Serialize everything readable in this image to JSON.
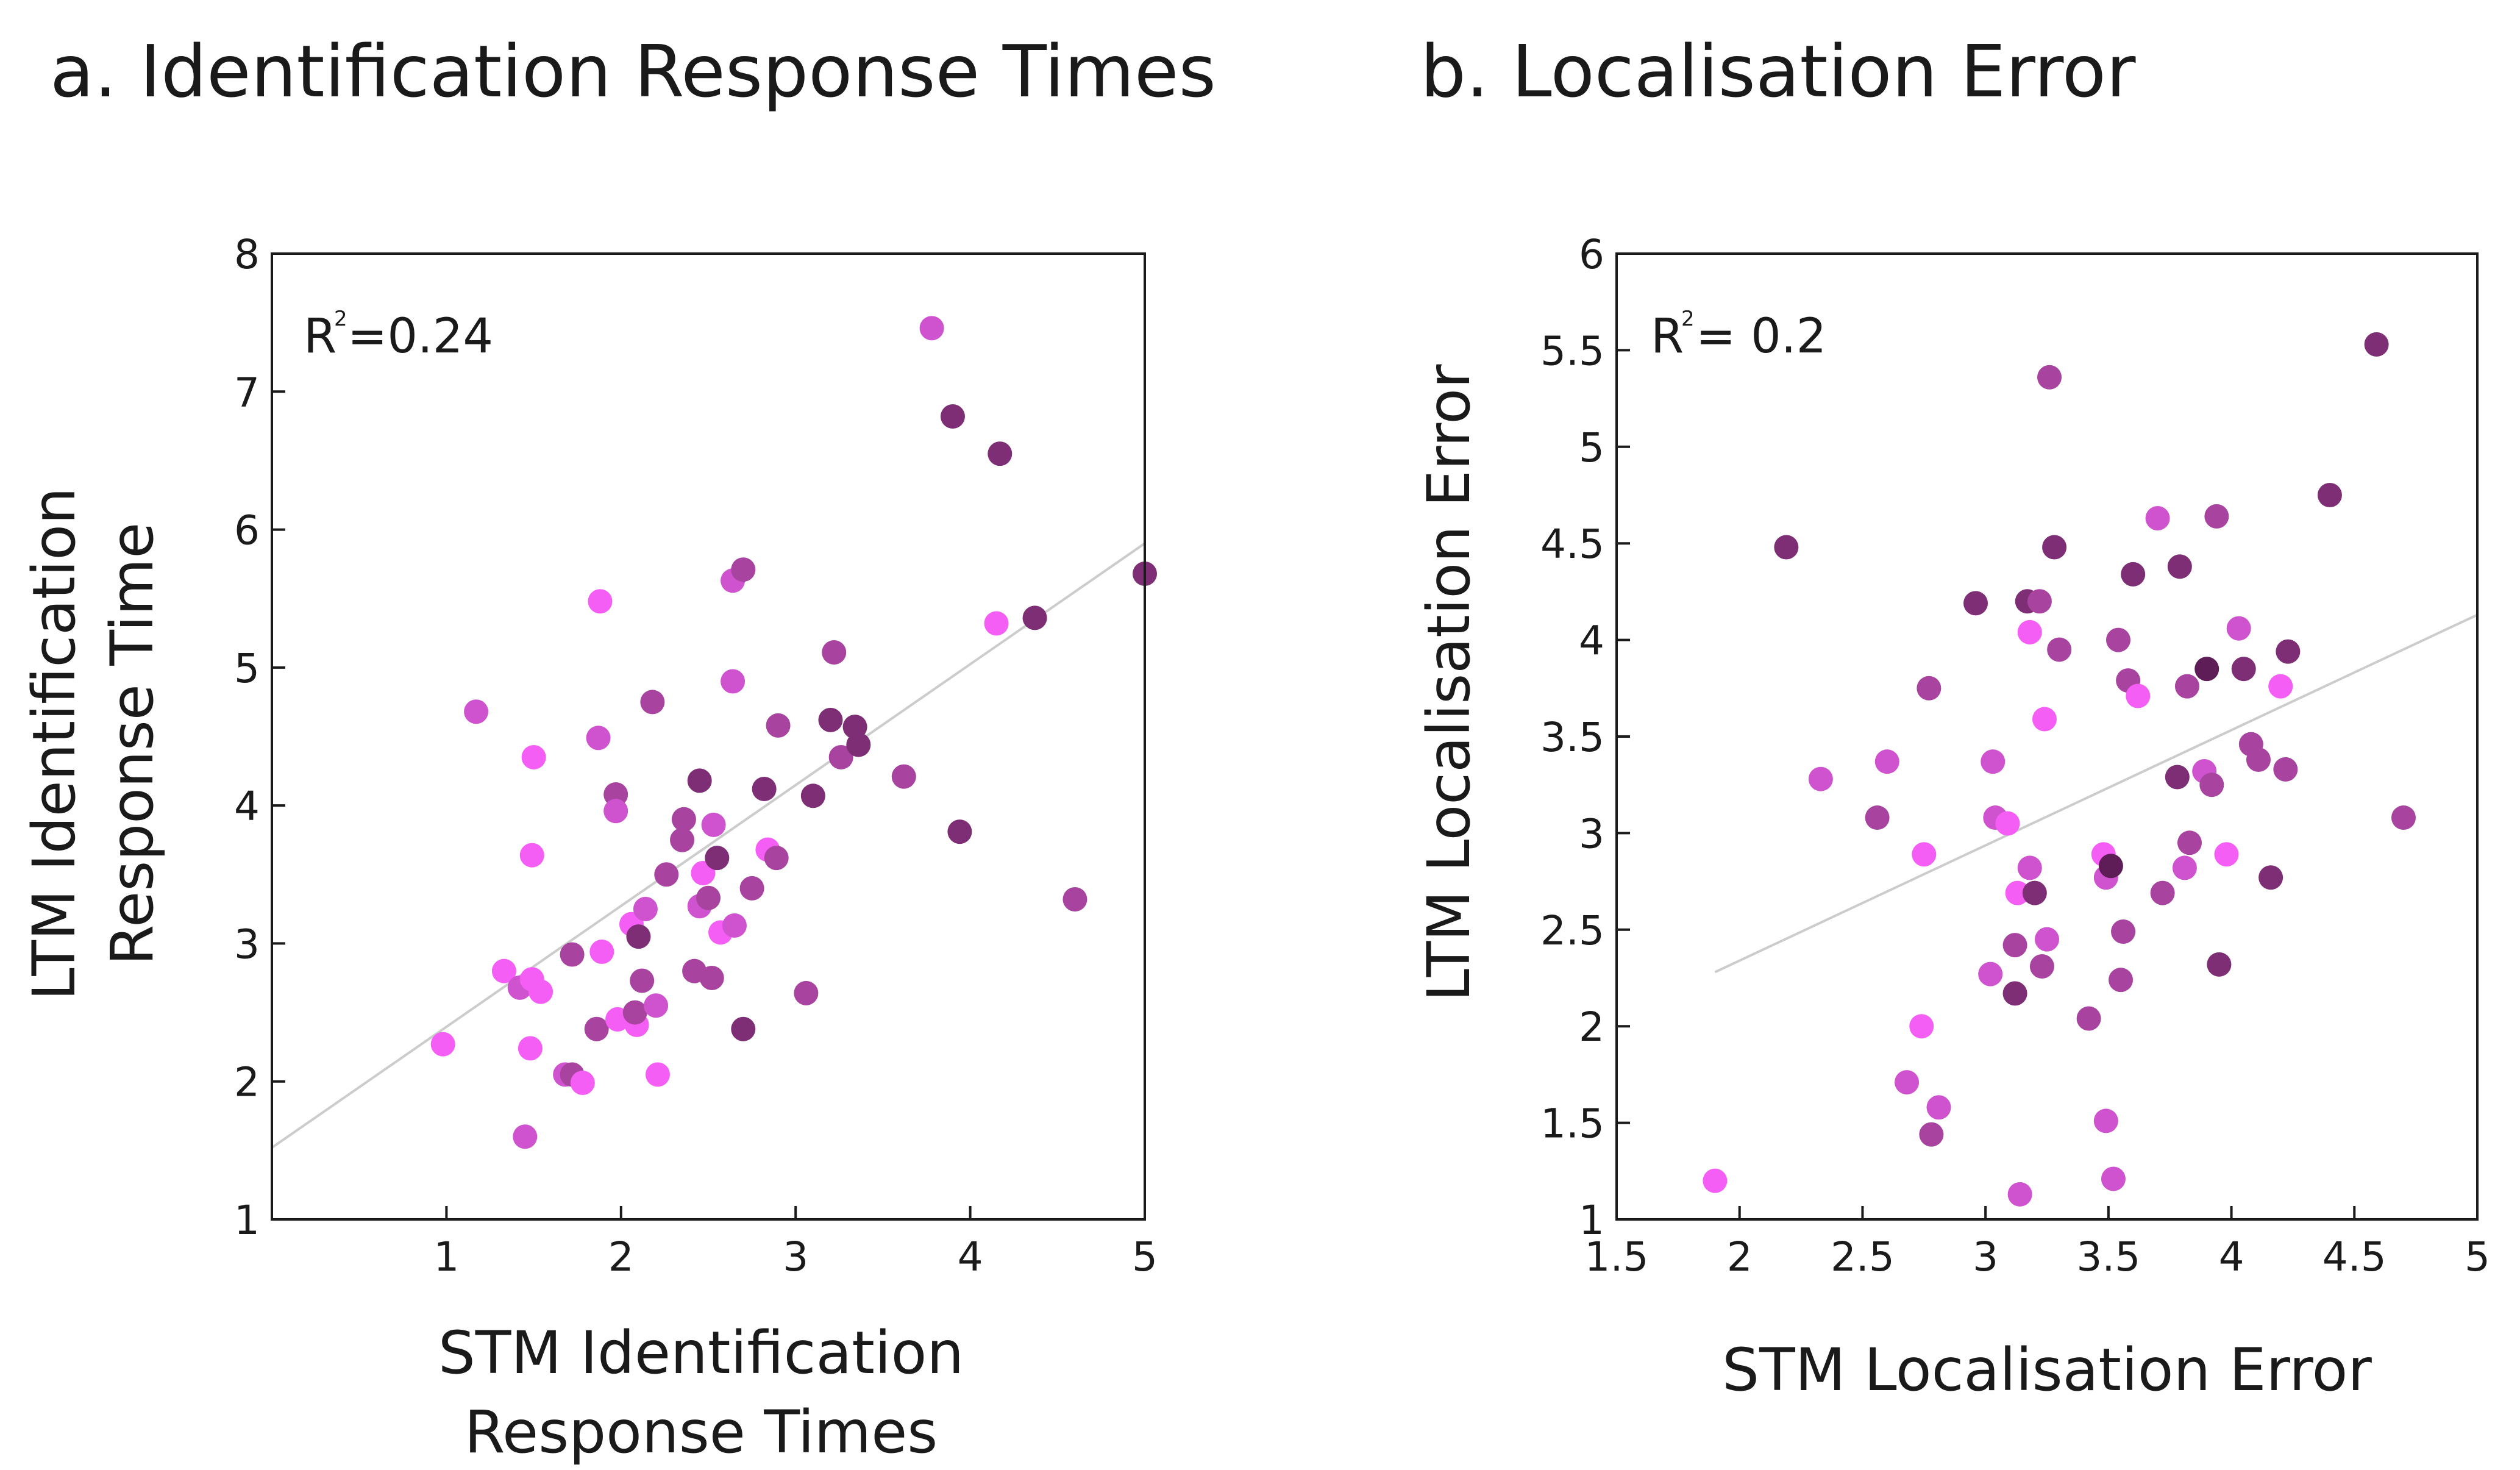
{
  "chart_data": [
    {
      "type": "scatter",
      "title": "a. Identification Response Times",
      "xlabel_lines": [
        "STM Identification",
        "Response Times"
      ],
      "ylabel_lines": [
        "LTM Identification",
        "Response Time"
      ],
      "xlim": [
        0,
        5
      ],
      "ylim": [
        1,
        8
      ],
      "xticks": [
        1,
        2,
        3,
        4,
        5
      ],
      "yticks": [
        1,
        2,
        3,
        4,
        5,
        6,
        7,
        8
      ],
      "annotation": {
        "base": "R",
        "sup": "2",
        "value": "=0.24"
      },
      "fit_line": {
        "x": [
          0,
          5
        ],
        "y": [
          1.52,
          5.9
        ]
      },
      "colors": {
        "c1": "#f55ef5",
        "c2": "#cf52cf",
        "c3": "#a8439f",
        "c4": "#7e2e74",
        "c5": "#5f1d58"
      },
      "points": [
        {
          "x": 0.98,
          "y": 2.27,
          "c": "c1"
        },
        {
          "x": 1.17,
          "y": 4.68,
          "c": "c2"
        },
        {
          "x": 1.33,
          "y": 2.8,
          "c": "c1"
        },
        {
          "x": 1.42,
          "y": 2.68,
          "c": "c2"
        },
        {
          "x": 1.45,
          "y": 1.6,
          "c": "c2"
        },
        {
          "x": 1.48,
          "y": 2.24,
          "c": "c1"
        },
        {
          "x": 1.49,
          "y": 2.74,
          "c": "c1"
        },
        {
          "x": 1.5,
          "y": 4.35,
          "c": "c1"
        },
        {
          "x": 1.49,
          "y": 3.64,
          "c": "c1"
        },
        {
          "x": 1.54,
          "y": 2.65,
          "c": "c1"
        },
        {
          "x": 1.68,
          "y": 2.05,
          "c": "c2"
        },
        {
          "x": 1.72,
          "y": 2.05,
          "c": "c3"
        },
        {
          "x": 1.72,
          "y": 2.92,
          "c": "c3"
        },
        {
          "x": 1.78,
          "y": 1.99,
          "c": "c1"
        },
        {
          "x": 1.86,
          "y": 2.38,
          "c": "c3"
        },
        {
          "x": 1.87,
          "y": 4.49,
          "c": "c2"
        },
        {
          "x": 1.88,
          "y": 5.48,
          "c": "c1"
        },
        {
          "x": 1.89,
          "y": 2.94,
          "c": "c1"
        },
        {
          "x": 1.97,
          "y": 4.08,
          "c": "c3"
        },
        {
          "x": 1.97,
          "y": 3.96,
          "c": "c2"
        },
        {
          "x": 1.98,
          "y": 2.45,
          "c": "c1"
        },
        {
          "x": 2.06,
          "y": 3.14,
          "c": "c1"
        },
        {
          "x": 2.09,
          "y": 2.41,
          "c": "c1"
        },
        {
          "x": 2.1,
          "y": 3.05,
          "c": "c4"
        },
        {
          "x": 2.08,
          "y": 2.5,
          "c": "c3"
        },
        {
          "x": 2.12,
          "y": 2.73,
          "c": "c3"
        },
        {
          "x": 2.14,
          "y": 3.25,
          "c": "c2"
        },
        {
          "x": 2.18,
          "y": 4.75,
          "c": "c3"
        },
        {
          "x": 2.2,
          "y": 2.55,
          "c": "c2"
        },
        {
          "x": 2.21,
          "y": 2.05,
          "c": "c1"
        },
        {
          "x": 2.26,
          "y": 3.5,
          "c": "c3"
        },
        {
          "x": 2.35,
          "y": 3.75,
          "c": "c3"
        },
        {
          "x": 2.36,
          "y": 3.9,
          "c": "c3"
        },
        {
          "x": 2.42,
          "y": 2.8,
          "c": "c3"
        },
        {
          "x": 2.45,
          "y": 4.18,
          "c": "c4"
        },
        {
          "x": 2.45,
          "y": 3.27,
          "c": "c2"
        },
        {
          "x": 2.47,
          "y": 3.51,
          "c": "c1"
        },
        {
          "x": 2.5,
          "y": 3.33,
          "c": "c3"
        },
        {
          "x": 2.52,
          "y": 2.75,
          "c": "c3"
        },
        {
          "x": 2.53,
          "y": 3.86,
          "c": "c2"
        },
        {
          "x": 2.55,
          "y": 3.62,
          "c": "c4"
        },
        {
          "x": 2.57,
          "y": 3.08,
          "c": "c1"
        },
        {
          "x": 2.64,
          "y": 4.9,
          "c": "c2"
        },
        {
          "x": 2.64,
          "y": 5.63,
          "c": "c2"
        },
        {
          "x": 2.65,
          "y": 3.13,
          "c": "c2"
        },
        {
          "x": 2.7,
          "y": 5.71,
          "c": "c3"
        },
        {
          "x": 2.7,
          "y": 2.38,
          "c": "c4"
        },
        {
          "x": 2.75,
          "y": 3.4,
          "c": "c3"
        },
        {
          "x": 2.82,
          "y": 4.12,
          "c": "c4"
        },
        {
          "x": 2.84,
          "y": 3.68,
          "c": "c1"
        },
        {
          "x": 2.89,
          "y": 3.62,
          "c": "c3"
        },
        {
          "x": 2.9,
          "y": 4.58,
          "c": "c3"
        },
        {
          "x": 3.06,
          "y": 2.64,
          "c": "c3"
        },
        {
          "x": 3.1,
          "y": 4.07,
          "c": "c4"
        },
        {
          "x": 3.2,
          "y": 4.62,
          "c": "c4"
        },
        {
          "x": 3.22,
          "y": 5.11,
          "c": "c3"
        },
        {
          "x": 3.26,
          "y": 4.35,
          "c": "c3"
        },
        {
          "x": 3.34,
          "y": 4.57,
          "c": "c4"
        },
        {
          "x": 3.36,
          "y": 4.44,
          "c": "c4"
        },
        {
          "x": 3.62,
          "y": 4.21,
          "c": "c3"
        },
        {
          "x": 3.78,
          "y": 7.46,
          "c": "c2"
        },
        {
          "x": 3.9,
          "y": 6.82,
          "c": "c4"
        },
        {
          "x": 3.94,
          "y": 3.81,
          "c": "c4"
        },
        {
          "x": 4.15,
          "y": 5.32,
          "c": "c1"
        },
        {
          "x": 4.17,
          "y": 6.55,
          "c": "c4"
        },
        {
          "x": 4.37,
          "y": 5.36,
          "c": "c4"
        },
        {
          "x": 4.6,
          "y": 3.32,
          "c": "c3"
        },
        {
          "x": 5.0,
          "y": 5.68,
          "c": "c4"
        }
      ]
    },
    {
      "type": "scatter",
      "title": "b. Localisation Error",
      "xlabel_lines": [
        "STM Localisation Error"
      ],
      "ylabel_lines": [
        "LTM Localisation Error"
      ],
      "xlim": [
        1.5,
        5
      ],
      "ylim": [
        1,
        6
      ],
      "xticks": [
        1.5,
        2,
        2.5,
        3,
        3.5,
        4,
        4.5,
        5
      ],
      "yticks": [
        1,
        1.5,
        2,
        2.5,
        3,
        3.5,
        4,
        4.5,
        5,
        5.5,
        6
      ],
      "annotation": {
        "base": "R",
        "sup": "2",
        "value": "= 0.2"
      },
      "fit_line": {
        "x": [
          1.9,
          5
        ],
        "y": [
          2.28,
          4.13
        ]
      },
      "colors": {
        "c1": "#f55ef5",
        "c2": "#cf52cf",
        "c3": "#a8439f",
        "c4": "#7e2e74",
        "c5": "#5f1d58"
      },
      "points": [
        {
          "x": 1.9,
          "y": 1.2,
          "c": "c1"
        },
        {
          "x": 2.19,
          "y": 4.48,
          "c": "c4"
        },
        {
          "x": 2.33,
          "y": 3.28,
          "c": "c2"
        },
        {
          "x": 2.56,
          "y": 3.08,
          "c": "c3"
        },
        {
          "x": 2.6,
          "y": 3.37,
          "c": "c2"
        },
        {
          "x": 2.68,
          "y": 1.71,
          "c": "c2"
        },
        {
          "x": 2.74,
          "y": 2.0,
          "c": "c1"
        },
        {
          "x": 2.75,
          "y": 2.89,
          "c": "c1"
        },
        {
          "x": 2.77,
          "y": 3.75,
          "c": "c3"
        },
        {
          "x": 2.78,
          "y": 1.44,
          "c": "c3"
        },
        {
          "x": 2.81,
          "y": 1.58,
          "c": "c2"
        },
        {
          "x": 2.96,
          "y": 4.19,
          "c": "c4"
        },
        {
          "x": 3.02,
          "y": 2.27,
          "c": "c2"
        },
        {
          "x": 3.03,
          "y": 3.37,
          "c": "c2"
        },
        {
          "x": 3.04,
          "y": 3.08,
          "c": "c2"
        },
        {
          "x": 3.09,
          "y": 3.05,
          "c": "c1"
        },
        {
          "x": 3.12,
          "y": 2.42,
          "c": "c3"
        },
        {
          "x": 3.12,
          "y": 2.17,
          "c": "c4"
        },
        {
          "x": 3.13,
          "y": 2.69,
          "c": "c1"
        },
        {
          "x": 3.14,
          "y": 1.13,
          "c": "c2"
        },
        {
          "x": 3.17,
          "y": 4.2,
          "c": "c4"
        },
        {
          "x": 3.18,
          "y": 4.04,
          "c": "c1"
        },
        {
          "x": 3.18,
          "y": 2.82,
          "c": "c2"
        },
        {
          "x": 3.2,
          "y": 2.69,
          "c": "c4"
        },
        {
          "x": 3.22,
          "y": 4.2,
          "c": "c3"
        },
        {
          "x": 3.23,
          "y": 2.31,
          "c": "c3"
        },
        {
          "x": 3.24,
          "y": 3.59,
          "c": "c1"
        },
        {
          "x": 3.25,
          "y": 2.45,
          "c": "c2"
        },
        {
          "x": 3.26,
          "y": 5.36,
          "c": "c3"
        },
        {
          "x": 3.28,
          "y": 4.48,
          "c": "c4"
        },
        {
          "x": 3.3,
          "y": 3.95,
          "c": "c3"
        },
        {
          "x": 3.42,
          "y": 2.04,
          "c": "c3"
        },
        {
          "x": 3.48,
          "y": 2.89,
          "c": "c1"
        },
        {
          "x": 3.49,
          "y": 2.77,
          "c": "c2"
        },
        {
          "x": 3.49,
          "y": 1.51,
          "c": "c2"
        },
        {
          "x": 3.51,
          "y": 2.83,
          "c": "c5"
        },
        {
          "x": 3.52,
          "y": 1.21,
          "c": "c2"
        },
        {
          "x": 3.54,
          "y": 4.0,
          "c": "c3"
        },
        {
          "x": 3.55,
          "y": 2.24,
          "c": "c3"
        },
        {
          "x": 3.56,
          "y": 2.49,
          "c": "c3"
        },
        {
          "x": 3.58,
          "y": 3.79,
          "c": "c3"
        },
        {
          "x": 3.6,
          "y": 4.34,
          "c": "c4"
        },
        {
          "x": 3.62,
          "y": 3.71,
          "c": "c1"
        },
        {
          "x": 3.7,
          "y": 4.63,
          "c": "c2"
        },
        {
          "x": 3.72,
          "y": 2.69,
          "c": "c3"
        },
        {
          "x": 3.78,
          "y": 3.29,
          "c": "c4"
        },
        {
          "x": 3.79,
          "y": 4.38,
          "c": "c4"
        },
        {
          "x": 3.81,
          "y": 2.82,
          "c": "c2"
        },
        {
          "x": 3.82,
          "y": 3.76,
          "c": "c3"
        },
        {
          "x": 3.83,
          "y": 2.95,
          "c": "c3"
        },
        {
          "x": 3.89,
          "y": 3.32,
          "c": "c2"
        },
        {
          "x": 3.9,
          "y": 3.85,
          "c": "c5"
        },
        {
          "x": 3.92,
          "y": 3.25,
          "c": "c3"
        },
        {
          "x": 3.94,
          "y": 4.64,
          "c": "c3"
        },
        {
          "x": 3.95,
          "y": 2.32,
          "c": "c4"
        },
        {
          "x": 3.98,
          "y": 2.89,
          "c": "c1"
        },
        {
          "x": 4.03,
          "y": 4.06,
          "c": "c2"
        },
        {
          "x": 4.05,
          "y": 3.85,
          "c": "c4"
        },
        {
          "x": 4.08,
          "y": 3.46,
          "c": "c3"
        },
        {
          "x": 4.11,
          "y": 3.38,
          "c": "c3"
        },
        {
          "x": 4.16,
          "y": 2.77,
          "c": "c4"
        },
        {
          "x": 4.2,
          "y": 3.76,
          "c": "c1"
        },
        {
          "x": 4.22,
          "y": 3.33,
          "c": "c3"
        },
        {
          "x": 4.23,
          "y": 3.94,
          "c": "c4"
        },
        {
          "x": 4.4,
          "y": 4.75,
          "c": "c4"
        },
        {
          "x": 4.59,
          "y": 5.53,
          "c": "c4"
        },
        {
          "x": 4.7,
          "y": 3.08,
          "c": "c3"
        }
      ]
    }
  ]
}
